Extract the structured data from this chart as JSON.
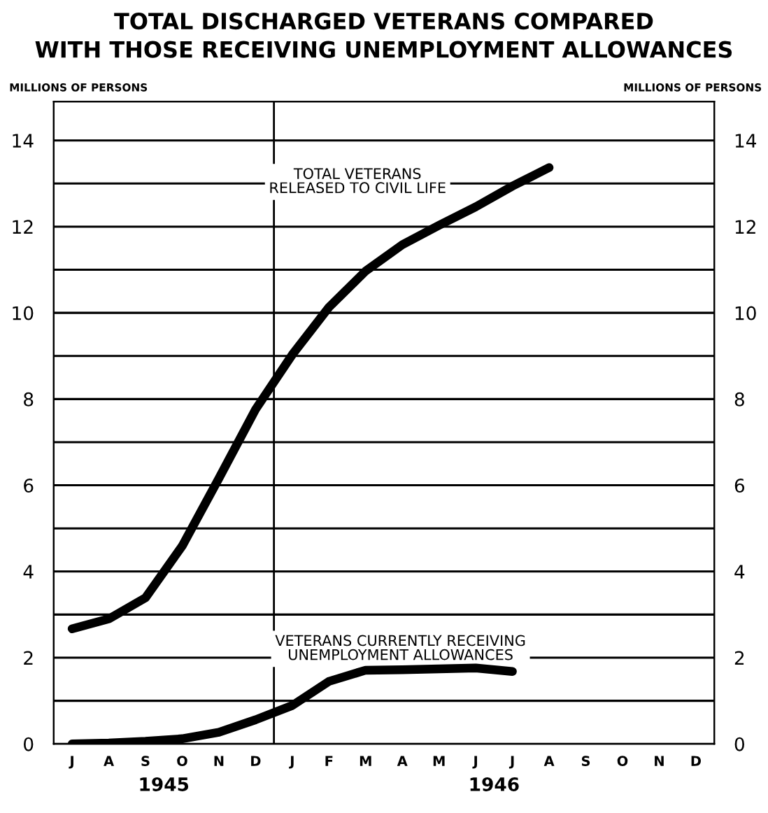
{
  "chart_data": {
    "type": "line",
    "title": "TOTAL DISCHARGED VETERANS COMPARED\nWITH THOSE RECEIVING UNEMPLOYMENT ALLOWANCES",
    "ylabel": "MILLIONS OF PERSONS",
    "y2label": "MILLIONS OF PERSONS",
    "categories": [
      "J",
      "A",
      "S",
      "O",
      "N",
      "D",
      "J",
      "F",
      "M",
      "A",
      "M",
      "J",
      "J",
      "A",
      "S",
      "O",
      "N",
      "D"
    ],
    "ylim": [
      0,
      14.9
    ],
    "yticks": [
      0,
      {
        "value": 1,
        "label": null
      },
      2,
      {
        "value": 3,
        "label": null
      },
      4,
      {
        "value": 5,
        "label": null
      },
      6,
      {
        "value": 7,
        "label": null
      },
      8,
      {
        "value": 9,
        "label": null
      },
      10,
      {
        "value": 11,
        "label": null
      },
      12,
      {
        "value": 13,
        "label": null
      },
      14
    ],
    "y2lim": [
      0,
      14.9
    ],
    "y2ticks": [
      0,
      {
        "value": 1,
        "label": null
      },
      2,
      {
        "value": 3,
        "label": null
      },
      4,
      {
        "value": 5,
        "label": null
      },
      6,
      {
        "value": 7,
        "label": null
      },
      8,
      {
        "value": 9,
        "label": null
      },
      10,
      {
        "value": 11,
        "label": null
      },
      12,
      {
        "value": 13,
        "label": null
      },
      14
    ],
    "grid": "y",
    "legend": false,
    "marker": "none",
    "line_style": "solid",
    "annotations": [
      "TOTAL VETERANS\nRELEASED TO CIVIL LIFE",
      "VETERANS CURRENTLY RECEIVING\nUNEMPLOYMENT ALLOWANCES",
      "1945",
      "1946"
    ],
    "series": [
      {
        "color": "#000000",
        "values": [
          2.67,
          2.9,
          3.39,
          4.59,
          6.16,
          7.76,
          9.03,
          10.13,
          10.97,
          11.58,
          12.03,
          12.46,
          12.94,
          13.37,
          null,
          null,
          null,
          null
        ]
      },
      {
        "color": "#000000",
        "values": [
          0,
          0.02,
          0.06,
          0.12,
          0.27,
          0.56,
          0.89,
          1.45,
          1.71,
          1.72,
          1.74,
          1.76,
          1.68,
          null,
          null,
          null,
          null,
          null
        ]
      }
    ]
  }
}
